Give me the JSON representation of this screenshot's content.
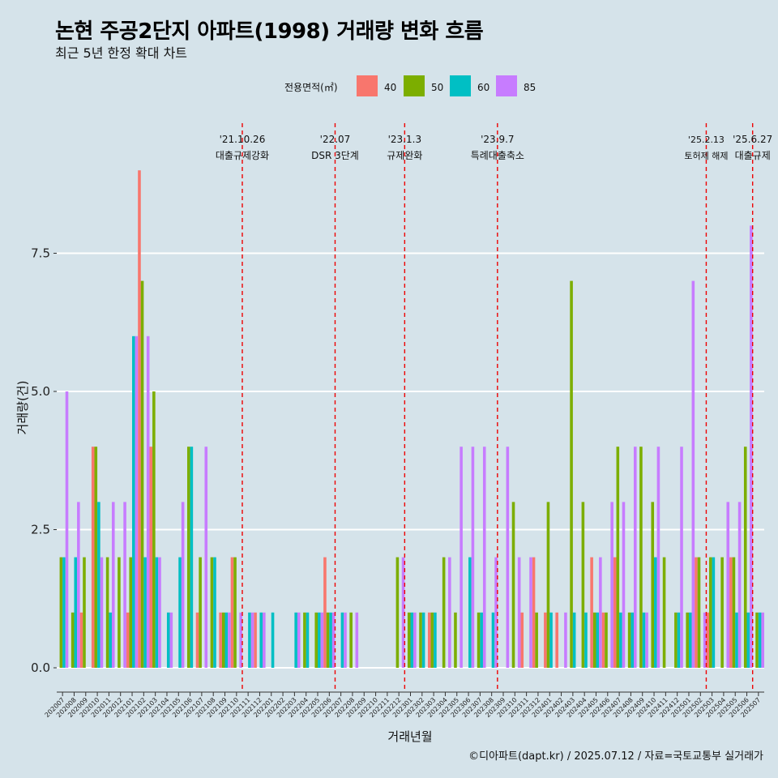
{
  "chart_data": {
    "type": "bar",
    "title": "논현 주공2단지 아파트(1998) 거래량 변화 흐름",
    "subtitle": "최근 5년 한정 확대 차트",
    "xlabel": "거래년월",
    "ylabel": "거래량(건)",
    "legend_title": "전용면적(㎡)",
    "legend_position": "top",
    "ylim": [
      0,
      9.5
    ],
    "yticks": [
      0.0,
      2.5,
      5.0,
      7.5
    ],
    "ytick_labels": [
      "0.0",
      "2.5",
      "5.0",
      "7.5"
    ],
    "categories": [
      "202007",
      "202008",
      "202009",
      "202010",
      "202011",
      "202012",
      "202101",
      "202102",
      "202103",
      "202104",
      "202105",
      "202106",
      "202107",
      "202108",
      "202109",
      "202110",
      "202111",
      "202112",
      "202201",
      "202202",
      "202203",
      "202204",
      "202205",
      "202206",
      "202207",
      "202208",
      "202209",
      "202210",
      "202211",
      "202212",
      "202301",
      "202302",
      "202303",
      "202304",
      "202305",
      "202306",
      "202307",
      "202308",
      "202309",
      "202310",
      "202311",
      "202312",
      "202401",
      "202402",
      "202403",
      "202404",
      "202405",
      "202406",
      "202407",
      "202408",
      "202409",
      "202410",
      "202411",
      "202412",
      "202501",
      "202502",
      "202503",
      "202504",
      "202505",
      "202506",
      "202507"
    ],
    "series": [
      {
        "name": "40",
        "color": "#f8766d",
        "values": [
          0,
          0,
          1,
          4,
          0,
          0,
          1,
          9,
          4,
          0,
          0,
          0,
          1,
          0,
          1,
          2,
          0,
          1,
          0,
          0,
          0,
          0,
          0,
          2,
          0,
          0,
          0,
          0,
          0,
          0,
          0,
          0,
          1,
          0,
          0,
          0,
          0,
          0,
          0,
          0,
          1,
          2,
          1,
          1,
          0,
          0,
          2,
          1,
          2,
          0,
          0,
          0,
          0,
          0,
          0,
          2,
          1,
          0,
          2,
          0,
          0
        ]
      },
      {
        "name": "50",
        "color": "#7cae00",
        "values": [
          2,
          1,
          2,
          4,
          2,
          2,
          2,
          7,
          5,
          0,
          0,
          4,
          2,
          2,
          1,
          2,
          0,
          0,
          0,
          0,
          0,
          1,
          1,
          1,
          0,
          1,
          0,
          0,
          0,
          2,
          1,
          1,
          1,
          2,
          1,
          0,
          1,
          0,
          0,
          3,
          0,
          1,
          3,
          0,
          7,
          3,
          1,
          1,
          4,
          1,
          4,
          3,
          2,
          1,
          1,
          2,
          2,
          2,
          2,
          4,
          1
        ]
      },
      {
        "name": "60",
        "color": "#00bfc4",
        "values": [
          2,
          2,
          0,
          3,
          1,
          0,
          6,
          2,
          2,
          1,
          2,
          4,
          0,
          2,
          1,
          0,
          1,
          1,
          1,
          0,
          1,
          1,
          1,
          1,
          1,
          0,
          0,
          0,
          0,
          0,
          1,
          1,
          1,
          0,
          0,
          2,
          1,
          1,
          0,
          0,
          0,
          0,
          1,
          0,
          1,
          1,
          1,
          0,
          1,
          1,
          1,
          2,
          0,
          1,
          1,
          0,
          2,
          0,
          1,
          1,
          1
        ]
      },
      {
        "name": "85",
        "color": "#c77cff",
        "values": [
          5,
          3,
          0,
          2,
          3,
          3,
          6,
          6,
          2,
          1,
          3,
          0,
          4,
          0,
          1,
          1,
          1,
          1,
          0,
          0,
          1,
          0,
          1,
          1,
          1,
          1,
          0,
          0,
          0,
          2,
          1,
          0,
          0,
          2,
          4,
          4,
          4,
          2,
          4,
          2,
          2,
          0,
          0,
          1,
          0,
          0,
          2,
          3,
          3,
          4,
          1,
          4,
          0,
          4,
          7,
          1,
          0,
          3,
          3,
          8,
          1
        ]
      }
    ],
    "annotations": [
      {
        "at": "202111",
        "date": "'21.10.26",
        "label": "대출규제강화"
      },
      {
        "at": "202207",
        "date": "'22.07",
        "label": "DSR 3단계"
      },
      {
        "at": "202301",
        "date": "'23.1.3",
        "label": "규제완화"
      },
      {
        "at": "202309",
        "date": "'23.9.7",
        "label": "특례대출축소"
      },
      {
        "at": "202503",
        "date": "'25.2.13",
        "label": "토허제 해제"
      },
      {
        "at": "202507",
        "date": "'25.6.27",
        "label": "대출규제"
      }
    ],
    "grid": true
  },
  "caption": "©디아파트(dapt.kr) / 2025.07.12 / 자료=국토교통부 실거래가"
}
